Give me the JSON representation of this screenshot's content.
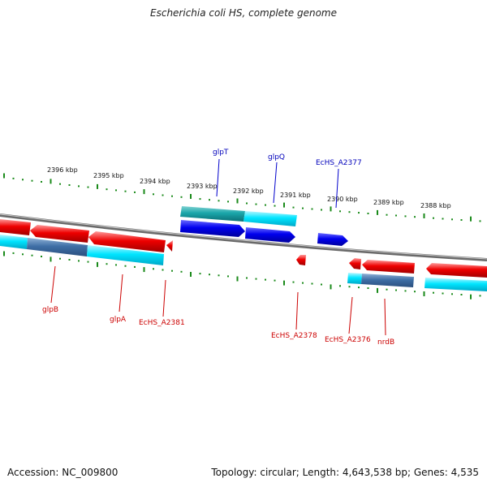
{
  "title": "Escherichia coli HS, complete genome",
  "footer": {
    "accession": "Accession: NC_009800",
    "topology": "Topology: circular; Length: 4,643,538 bp; Genes: 4,535"
  },
  "colors": {
    "forward_gene": "#0000ee",
    "reverse_gene": "#ee0000",
    "forward_gene_label": "#0000bb",
    "reverse_gene_label": "#cc0000",
    "orf_cyan": "#00e5ff",
    "backbone": "#888888",
    "tick": "#1a8a1a"
  },
  "kbp_labels": [
    "2396 kbp",
    "2395 kbp",
    "2394 kbp",
    "2393 kbp",
    "2392 kbp",
    "2391 kbp",
    "2390 kbp",
    "2389 kbp",
    "2388 kbp"
  ],
  "forward_genes": [
    "glpT",
    "glpQ",
    "EcHS_A2377"
  ],
  "reverse_genes": [
    "glpB",
    "glpA",
    "EcHS_A2381",
    "EcHS_A2378",
    "EcHS_A2376",
    "nrdB"
  ]
}
